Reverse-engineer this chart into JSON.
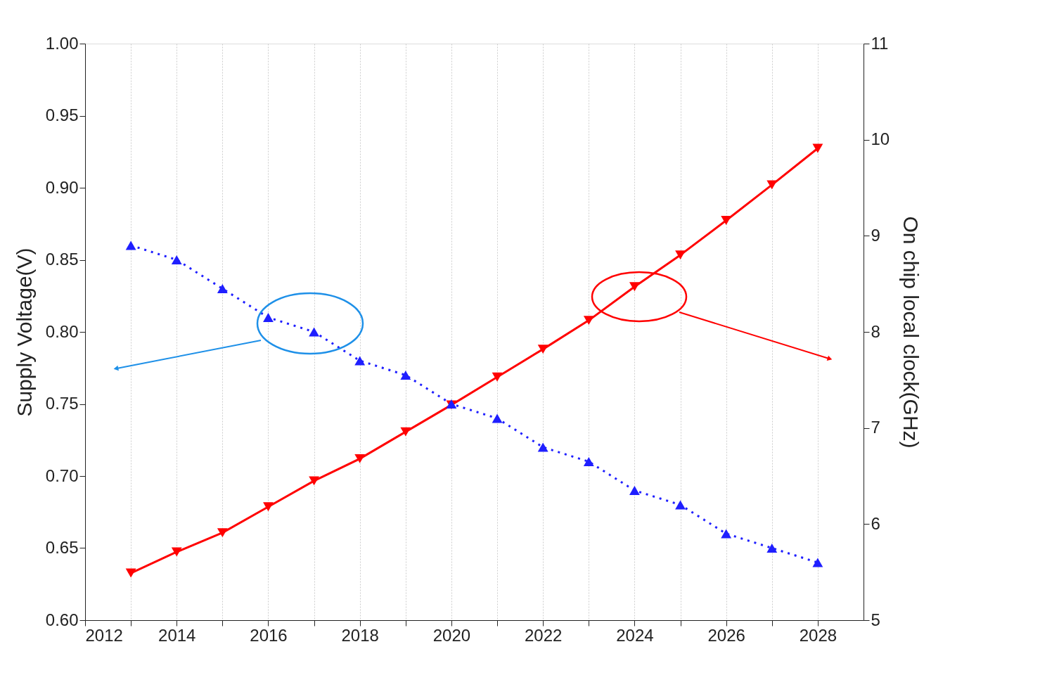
{
  "chart_data": {
    "type": "line",
    "ylabel": "Supply Voltage(V)",
    "y2label": "On chip local clock(GHz)",
    "x": [
      2013,
      2014,
      2015,
      2016,
      2017,
      2018,
      2019,
      2020,
      2021,
      2022,
      2023,
      2024,
      2025,
      2026,
      2027,
      2028
    ],
    "xlim": [
      2012,
      2029
    ],
    "xticks": [
      2012,
      {
        "value": 2013,
        "label": null
      },
      2014,
      {
        "value": 2015,
        "label": null
      },
      2016,
      {
        "value": 2017,
        "label": null
      },
      2018,
      {
        "value": 2019,
        "label": null
      },
      2020,
      {
        "value": 2021,
        "label": null
      },
      2022,
      {
        "value": 2023,
        "label": null
      },
      2024,
      {
        "value": 2025,
        "label": null
      },
      2026,
      {
        "value": 2027,
        "label": null
      },
      2028
    ],
    "ylim": [
      0.6,
      1.0
    ],
    "yticks": [
      {
        "value": 0.6,
        "label": "0.60"
      },
      0.65,
      {
        "value": 0.7,
        "label": "0.70"
      },
      0.75,
      {
        "value": 0.8,
        "label": "0.80"
      },
      0.85,
      {
        "value": 0.9,
        "label": "0.90"
      },
      0.95,
      {
        "value": 1.0,
        "label": "1.00"
      }
    ],
    "y2lim": [
      5,
      11
    ],
    "y2ticks": [
      5,
      6,
      7,
      8,
      9,
      10,
      11
    ],
    "grid": "x",
    "series": [
      {
        "color": "#1f1fff",
        "marker": "triangle",
        "line_style": "dotted",
        "values": [
          0.86,
          0.85,
          0.83,
          0.81,
          0.8,
          0.78,
          0.77,
          0.75,
          0.74,
          0.72,
          0.71,
          0.69,
          0.68,
          0.66,
          0.65,
          0.64
        ]
      },
      {
        "color": "#ff0000",
        "marker": "triangle-down",
        "line_style": "solid",
        "axis": "y2",
        "values": [
          5.49,
          5.71,
          5.91,
          6.18,
          6.45,
          6.68,
          6.96,
          7.24,
          7.53,
          7.82,
          8.12,
          8.47,
          8.8,
          9.16,
          9.53,
          9.91
        ]
      }
    ]
  }
}
